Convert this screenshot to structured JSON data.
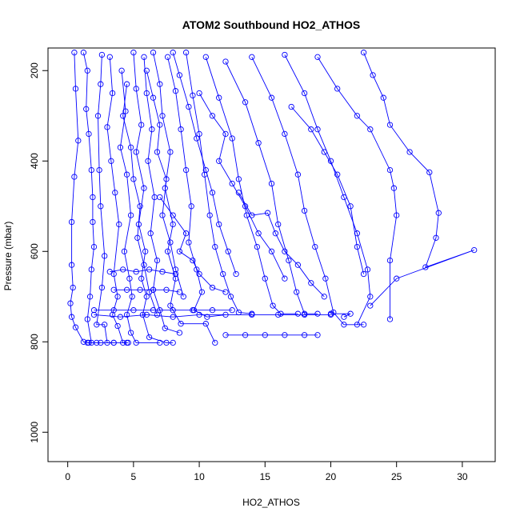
{
  "chart_data": {
    "type": "line",
    "title": "ATOM2 Southbound HO2_ATHOS",
    "xlabel": "HO2_ATHOS",
    "ylabel": "Pressure (mbar)",
    "xlim": [
      -1.5,
      32.5
    ],
    "ylim": [
      1065,
      150
    ],
    "y_reversed": true,
    "grid": false,
    "x_ticks": [
      0,
      5,
      10,
      15,
      20,
      25,
      30
    ],
    "y_ticks": [
      200,
      400,
      600,
      800,
      1000
    ],
    "series_color": "#0000FF",
    "marker": "open-circle",
    "series": [
      {
        "values": [
          [
            0.5,
            160
          ],
          [
            0.6,
            240
          ],
          [
            0.8,
            355
          ],
          [
            0.5,
            435
          ],
          [
            0.3,
            535
          ],
          [
            0.3,
            630
          ],
          [
            0.4,
            680
          ],
          [
            0.2,
            715
          ],
          [
            0.3,
            745
          ],
          [
            0.6,
            768
          ],
          [
            1.2,
            800
          ],
          [
            1.6,
            802
          ]
        ]
      },
      {
        "values": [
          [
            1.2,
            160
          ],
          [
            1.5,
            200
          ],
          [
            1.4,
            285
          ],
          [
            1.6,
            340
          ],
          [
            1.8,
            420
          ],
          [
            1.9,
            480
          ],
          [
            1.9,
            535
          ],
          [
            2.0,
            590
          ],
          [
            1.8,
            640
          ],
          [
            1.7,
            700
          ],
          [
            1.5,
            750
          ],
          [
            1.8,
            802
          ],
          [
            2.2,
            802
          ]
        ]
      },
      {
        "values": [
          [
            2.6,
            165
          ],
          [
            2.5,
            230
          ],
          [
            2.3,
            300
          ],
          [
            2.4,
            420
          ],
          [
            2.5,
            500
          ],
          [
            2.8,
            610
          ],
          [
            2.6,
            680
          ],
          [
            2.2,
            762
          ],
          [
            2.8,
            762
          ],
          [
            3.0,
            802
          ],
          [
            3.5,
            802
          ]
        ]
      },
      {
        "values": [
          [
            3.2,
            170
          ],
          [
            3.4,
            250
          ],
          [
            3.0,
            325
          ],
          [
            3.3,
            400
          ],
          [
            3.6,
            470
          ],
          [
            3.9,
            540
          ],
          [
            3.5,
            650
          ],
          [
            3.8,
            700
          ],
          [
            3.4,
            740
          ],
          [
            3.8,
            765
          ],
          [
            4.2,
            802
          ],
          [
            4.6,
            802
          ]
        ]
      },
      {
        "values": [
          [
            4.1,
            200
          ],
          [
            4.4,
            290
          ],
          [
            4.0,
            370
          ],
          [
            4.5,
            430
          ],
          [
            4.8,
            520
          ],
          [
            4.3,
            600
          ],
          [
            4.7,
            660
          ],
          [
            4.9,
            700
          ],
          [
            4.5,
            740
          ],
          [
            4.8,
            780
          ],
          [
            5.2,
            802
          ],
          [
            7.0,
            802
          ]
        ]
      },
      {
        "values": [
          [
            5.0,
            160
          ],
          [
            5.2,
            240
          ],
          [
            5.6,
            320
          ],
          [
            5.2,
            380
          ],
          [
            5.8,
            460
          ],
          [
            5.4,
            540
          ],
          [
            5.9,
            600
          ],
          [
            5.6,
            660
          ],
          [
            6.0,
            700
          ],
          [
            5.7,
            740
          ],
          [
            6.2,
            790
          ],
          [
            7.5,
            802
          ],
          [
            8.0,
            802
          ]
        ]
      },
      {
        "values": [
          [
            5.8,
            170
          ],
          [
            6.0,
            250
          ],
          [
            6.4,
            330
          ],
          [
            6.1,
            400
          ],
          [
            6.6,
            480
          ],
          [
            6.3,
            560
          ],
          [
            6.8,
            620
          ],
          [
            6.5,
            685
          ],
          [
            7.0,
            730
          ],
          [
            7.4,
            770
          ],
          [
            8.5,
            780
          ]
        ]
      },
      {
        "values": [
          [
            6.5,
            160
          ],
          [
            7.0,
            230
          ],
          [
            7.2,
            300
          ],
          [
            7.8,
            380
          ],
          [
            7.4,
            460
          ],
          [
            8.0,
            540
          ],
          [
            7.6,
            600
          ],
          [
            8.2,
            660
          ],
          [
            7.8,
            720
          ],
          [
            8.6,
            760
          ],
          [
            10.5,
            760
          ],
          [
            11.2,
            802
          ]
        ]
      },
      {
        "values": [
          [
            7.6,
            170
          ],
          [
            8.2,
            245
          ],
          [
            8.6,
            330
          ],
          [
            9.0,
            420
          ],
          [
            9.4,
            500
          ],
          [
            9.2,
            580
          ],
          [
            9.8,
            640
          ],
          [
            10.2,
            690
          ],
          [
            9.6,
            730
          ],
          [
            10.6,
            745
          ],
          [
            12.0,
            740
          ]
        ]
      },
      {
        "values": [
          [
            9.0,
            160
          ],
          [
            9.5,
            255
          ],
          [
            10.0,
            340
          ],
          [
            10.4,
            430
          ],
          [
            10.8,
            520
          ],
          [
            11.2,
            590
          ],
          [
            11.8,
            650
          ],
          [
            12.4,
            700
          ],
          [
            13.0,
            735
          ],
          [
            14.0,
            738
          ]
        ]
      },
      {
        "values": [
          [
            10.5,
            170
          ],
          [
            11.5,
            260
          ],
          [
            12.5,
            350
          ],
          [
            13.0,
            440
          ],
          [
            13.6,
            520
          ],
          [
            14.4,
            590
          ],
          [
            15.0,
            660
          ],
          [
            15.6,
            720
          ],
          [
            16.2,
            738
          ],
          [
            17.5,
            738
          ]
        ]
      },
      {
        "values": [
          [
            12.0,
            180
          ],
          [
            13.5,
            270
          ],
          [
            14.5,
            360
          ],
          [
            15.5,
            450
          ],
          [
            16.0,
            540
          ],
          [
            16.8,
            620
          ],
          [
            17.4,
            690
          ],
          [
            18.0,
            738
          ],
          [
            19.0,
            738
          ]
        ]
      },
      {
        "values": [
          [
            14.0,
            170
          ],
          [
            15.5,
            260
          ],
          [
            16.5,
            340
          ],
          [
            17.5,
            430
          ],
          [
            18.0,
            510
          ],
          [
            18.8,
            590
          ],
          [
            19.6,
            660
          ],
          [
            20.2,
            735
          ],
          [
            21.0,
            762
          ],
          [
            22.5,
            762
          ]
        ]
      },
      {
        "values": [
          [
            16.5,
            165
          ],
          [
            18.0,
            250
          ],
          [
            19.0,
            330
          ],
          [
            20.0,
            400
          ],
          [
            21.0,
            480
          ],
          [
            22.0,
            560
          ],
          [
            22.8,
            640
          ],
          [
            23.0,
            700
          ],
          [
            22.0,
            762
          ]
        ]
      },
      {
        "values": [
          [
            19.0,
            170
          ],
          [
            20.5,
            240
          ],
          [
            22.0,
            300
          ],
          [
            23.0,
            330
          ],
          [
            24.5,
            420
          ],
          [
            24.8,
            460
          ],
          [
            25.0,
            520
          ],
          [
            24.5,
            620
          ],
          [
            24.5,
            750
          ]
        ]
      },
      {
        "values": [
          [
            22.5,
            160
          ],
          [
            23.2,
            210
          ],
          [
            24.0,
            260
          ],
          [
            24.5,
            320
          ],
          [
            26.0,
            380
          ],
          [
            27.5,
            425
          ],
          [
            28.2,
            515
          ],
          [
            28.0,
            570
          ],
          [
            27.2,
            635
          ],
          [
            30.9,
            597
          ],
          [
            25.0,
            660
          ],
          [
            23.0,
            720
          ]
        ]
      },
      {
        "values": [
          [
            12.0,
            785
          ],
          [
            13.5,
            785
          ],
          [
            15.0,
            785
          ],
          [
            16.5,
            785
          ],
          [
            18.0,
            785
          ],
          [
            19.0,
            785
          ]
        ]
      },
      {
        "values": [
          [
            1.5,
            802
          ],
          [
            2.5,
            802
          ],
          [
            3.5,
            802
          ],
          [
            4.5,
            802
          ]
        ]
      },
      {
        "values": [
          [
            2.0,
            730
          ],
          [
            3.5,
            730
          ],
          [
            5.0,
            730
          ],
          [
            6.5,
            730
          ],
          [
            8.0,
            730
          ],
          [
            9.5,
            730
          ],
          [
            11.0,
            730
          ],
          [
            12.5,
            730
          ]
        ]
      },
      {
        "values": [
          [
            3.5,
            685
          ],
          [
            4.5,
            685
          ],
          [
            5.5,
            685
          ],
          [
            6.5,
            685
          ],
          [
            7.5,
            685
          ],
          [
            8.5,
            690
          ]
        ]
      },
      {
        "values": [
          [
            2.0,
            740
          ],
          [
            4.0,
            745
          ],
          [
            6.0,
            740
          ],
          [
            8.0,
            745
          ],
          [
            10.0,
            740
          ],
          [
            14.0,
            740
          ],
          [
            16.0,
            740
          ],
          [
            18.0,
            740
          ],
          [
            20.0,
            740
          ]
        ]
      },
      {
        "values": [
          [
            3.2,
            645
          ],
          [
            4.2,
            640
          ],
          [
            5.2,
            645
          ],
          [
            6.2,
            640
          ],
          [
            7.2,
            645
          ],
          [
            8.2,
            650
          ]
        ]
      },
      {
        "values": [
          [
            21.0,
            745
          ],
          [
            21.5,
            738
          ],
          [
            20.0,
            738
          ]
        ]
      },
      {
        "values": [
          [
            7.0,
            480
          ],
          [
            8.0,
            520
          ],
          [
            9.0,
            560
          ],
          [
            8.5,
            600
          ],
          [
            9.5,
            620
          ],
          [
            10.0,
            650
          ],
          [
            11.0,
            680
          ],
          [
            12.0,
            690
          ]
        ]
      },
      {
        "values": [
          [
            6.0,
            200
          ],
          [
            6.5,
            260
          ],
          [
            7.0,
            320
          ],
          [
            6.8,
            380
          ],
          [
            7.5,
            440
          ],
          [
            7.2,
            520
          ],
          [
            7.8,
            580
          ],
          [
            8.2,
            640
          ],
          [
            8.8,
            700
          ]
        ]
      },
      {
        "values": [
          [
            4.5,
            230
          ],
          [
            4.2,
            300
          ],
          [
            4.8,
            370
          ],
          [
            5.0,
            440
          ],
          [
            5.5,
            500
          ],
          [
            5.3,
            570
          ],
          [
            5.8,
            630
          ],
          [
            6.2,
            690
          ],
          [
            6.8,
            740
          ]
        ]
      },
      {
        "values": [
          [
            13.0,
            470
          ],
          [
            14.0,
            520
          ],
          [
            15.2,
            515
          ],
          [
            15.8,
            560
          ],
          [
            16.5,
            600
          ],
          [
            17.5,
            630
          ],
          [
            18.5,
            670
          ],
          [
            19.5,
            700
          ]
        ]
      },
      {
        "values": [
          [
            10.0,
            250
          ],
          [
            11.0,
            300
          ],
          [
            12.0,
            340
          ],
          [
            11.5,
            400
          ],
          [
            12.5,
            450
          ],
          [
            13.5,
            500
          ],
          [
            14.5,
            560
          ],
          [
            15.5,
            600
          ],
          [
            16.5,
            660
          ]
        ]
      },
      {
        "values": [
          [
            17.0,
            280
          ],
          [
            18.5,
            330
          ],
          [
            19.5,
            380
          ],
          [
            20.5,
            430
          ],
          [
            21.5,
            500
          ],
          [
            22.0,
            590
          ],
          [
            22.5,
            650
          ]
        ]
      },
      {
        "values": [
          [
            8.0,
            160
          ],
          [
            8.5,
            210
          ],
          [
            9.2,
            280
          ],
          [
            9.8,
            350
          ],
          [
            10.5,
            420
          ],
          [
            11.0,
            470
          ],
          [
            11.5,
            540
          ],
          [
            12.2,
            600
          ],
          [
            12.8,
            650
          ]
        ]
      }
    ]
  }
}
